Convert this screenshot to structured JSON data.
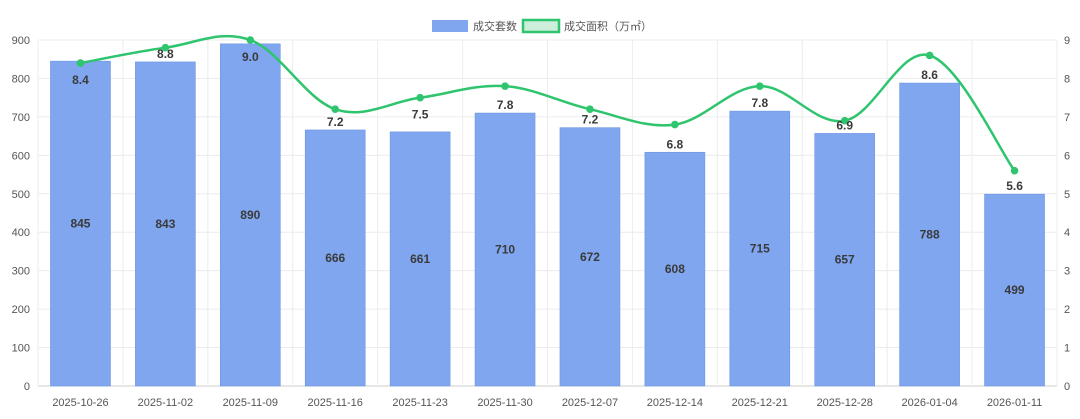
{
  "chart_data": {
    "type": "bar",
    "categories": [
      "2025-10-26",
      "2025-11-02",
      "2025-11-09",
      "2025-11-16",
      "2025-11-23",
      "2025-11-30",
      "2025-12-07",
      "2025-12-14",
      "2025-12-21",
      "2025-12-28",
      "2026-01-04",
      "2026-01-11"
    ],
    "series": [
      {
        "name": "成交套数",
        "type": "bar",
        "axis": "left",
        "color": "#7fa6ef",
        "values": [
          845,
          843,
          890,
          666,
          661,
          710,
          672,
          608,
          715,
          657,
          788,
          499
        ],
        "labels": [
          "845",
          "843",
          "890",
          "666",
          "661",
          "710",
          "672",
          "608",
          "715",
          "657",
          "788",
          "499"
        ]
      },
      {
        "name": "成交面积（万㎡）",
        "type": "line",
        "axis": "right",
        "color": "#2fc46e",
        "values": [
          8.4,
          8.8,
          9.0,
          7.2,
          7.5,
          7.8,
          7.2,
          6.8,
          7.8,
          6.9,
          8.6,
          5.6
        ],
        "labels": [
          "8.4",
          "8.8",
          "9.0",
          "7.2",
          "7.5",
          "7.8",
          "7.2",
          "6.8",
          "7.8",
          "6.9",
          "8.6",
          "5.6"
        ]
      }
    ],
    "y_left": {
      "min": 0,
      "max": 900,
      "ticks": [
        "0",
        "100",
        "200",
        "300",
        "400",
        "500",
        "600",
        "700",
        "800",
        "900"
      ]
    },
    "y_right": {
      "min": 0,
      "max": 9,
      "ticks": [
        "0",
        "1",
        "2",
        "3",
        "4",
        "5",
        "6",
        "7",
        "8",
        "9"
      ]
    },
    "title": "",
    "xlabel": "",
    "ylabel": "",
    "grid": true,
    "legend": "top-center"
  }
}
